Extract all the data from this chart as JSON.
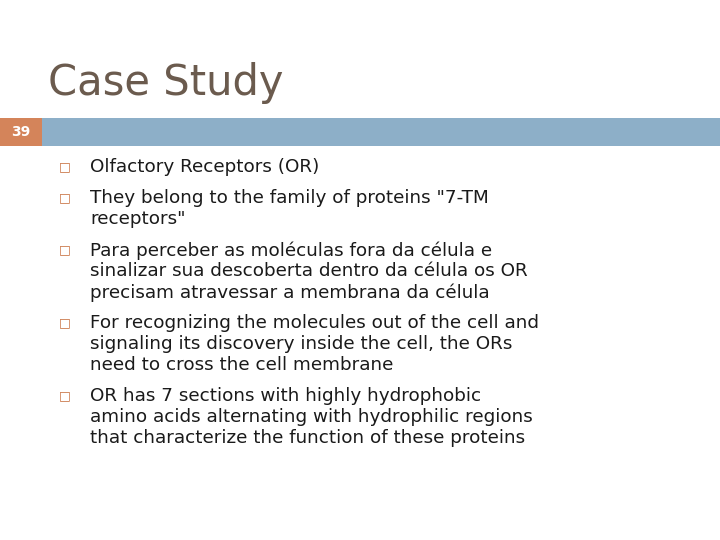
{
  "title": "Case Study",
  "title_color": "#6b5b4e",
  "title_fontsize": 30,
  "background_color": "#ffffff",
  "slide_number": "39",
  "slide_number_bg": "#d4845a",
  "header_bar_color": "#8dafc8",
  "bullet_color": "#c87040",
  "text_color": "#1a1a1a",
  "bullet_fontsize": 13.2,
  "bullets": [
    [
      "Olfactory Receptors (OR)"
    ],
    [
      "They belong to the family of proteins \"7-TM",
      "    receptors\""
    ],
    [
      "Para perceber as moléculas fora da célula e",
      "    sinalizar sua descoberta dentro da célula os OR",
      "    precisam atravessar a membrana da célula"
    ],
    [
      "For recognizing the molecules out of the cell and",
      "    signaling its discovery inside the cell, the ORs",
      "    need to cross the cell membrane"
    ],
    [
      "OR has 7 sections with highly hydrophobic",
      "    amino acids alternating with hydrophilic regions",
      "    that characterize the function of these proteins"
    ]
  ],
  "bullet_symbol": "□"
}
